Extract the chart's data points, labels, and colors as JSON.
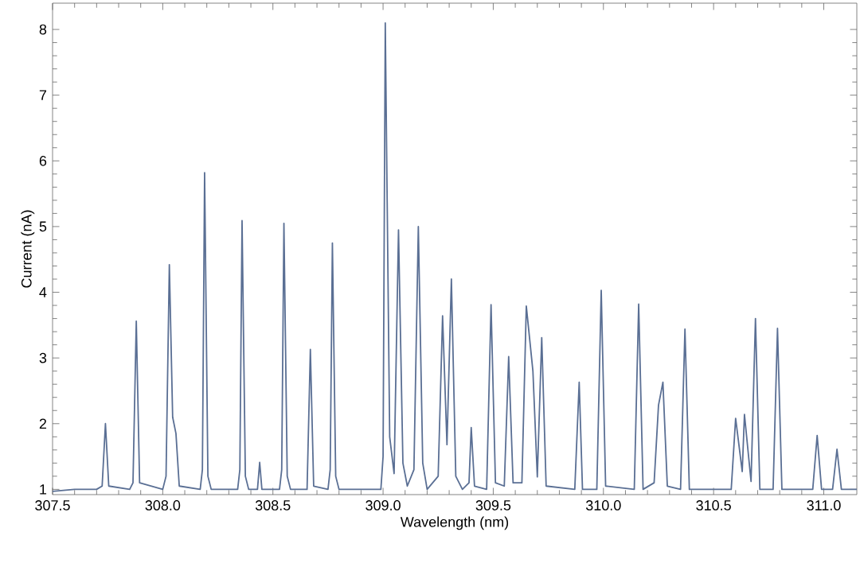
{
  "chart_data": {
    "type": "line",
    "xlabel": "Wavelength (nm)",
    "ylabel": "Current (nA)",
    "xlim": [
      307.5,
      311.15
    ],
    "ylim": [
      0.92,
      8.4
    ],
    "xticks": [
      {
        "value": 307.5,
        "label": "307.5"
      },
      {
        "value": 308.0,
        "label": "308.0"
      },
      {
        "value": 308.5,
        "label": "308.5"
      },
      {
        "value": 309.0,
        "label": "309.0"
      },
      {
        "value": 309.5,
        "label": "309.5"
      },
      {
        "value": 310.0,
        "label": "310.0"
      },
      {
        "value": 310.5,
        "label": "310.5"
      },
      {
        "value": 311.0,
        "label": "311.0"
      }
    ],
    "yticks": [
      1,
      2,
      3,
      4,
      5,
      6,
      7,
      8
    ],
    "grid": false,
    "marker": "none",
    "line_style": "solid",
    "x": [
      307.5,
      307.6,
      307.7,
      307.725,
      307.74,
      307.755,
      307.85,
      307.865,
      307.88,
      307.895,
      308.0,
      308.015,
      308.03,
      308.045,
      308.06,
      308.075,
      308.17,
      308.18,
      308.19,
      308.205,
      308.22,
      308.34,
      308.35,
      308.36,
      308.375,
      308.39,
      308.43,
      308.44,
      308.45,
      308.53,
      308.54,
      308.55,
      308.565,
      308.58,
      308.655,
      308.67,
      308.685,
      308.75,
      308.76,
      308.77,
      308.785,
      308.8,
      308.99,
      309.0,
      309.01,
      309.03,
      309.05,
      309.07,
      309.09,
      309.11,
      309.14,
      309.16,
      309.18,
      309.2,
      309.25,
      309.27,
      309.29,
      309.31,
      309.33,
      309.36,
      309.39,
      309.4,
      309.415,
      309.47,
      309.49,
      309.51,
      309.55,
      309.57,
      309.59,
      309.63,
      309.65,
      309.68,
      309.7,
      309.72,
      309.74,
      309.87,
      309.89,
      309.905,
      309.97,
      309.99,
      310.01,
      310.14,
      310.16,
      310.18,
      310.23,
      310.25,
      310.27,
      310.29,
      310.35,
      310.37,
      310.39,
      310.58,
      310.6,
      310.63,
      310.64,
      310.67,
      310.69,
      310.71,
      310.77,
      310.79,
      310.81,
      310.95,
      310.97,
      310.99,
      311.04,
      311.06,
      311.08,
      311.15
    ],
    "series": [
      {
        "color": "#5a6f94",
        "values": [
          0.97,
          1.0,
          1.0,
          1.05,
          2.0,
          1.05,
          1.0,
          1.1,
          3.56,
          1.1,
          1.0,
          1.2,
          4.42,
          2.1,
          1.85,
          1.05,
          1.0,
          1.3,
          5.82,
          1.2,
          1.0,
          1.0,
          1.3,
          5.09,
          1.2,
          1.0,
          1.0,
          1.41,
          1.0,
          1.0,
          1.3,
          5.05,
          1.2,
          1.0,
          1.0,
          3.13,
          1.05,
          1.0,
          1.3,
          4.75,
          1.2,
          1.0,
          1.0,
          1.5,
          8.1,
          1.8,
          1.24,
          4.95,
          1.4,
          1.05,
          1.3,
          5.0,
          1.4,
          1.0,
          1.2,
          3.64,
          1.68,
          4.2,
          1.2,
          1.0,
          1.1,
          1.94,
          1.05,
          1.0,
          3.81,
          1.1,
          1.05,
          3.02,
          1.1,
          1.1,
          3.79,
          2.8,
          1.19,
          3.31,
          1.05,
          1.0,
          2.63,
          1.0,
          1.0,
          4.03,
          1.05,
          1.0,
          3.82,
          1.0,
          1.1,
          2.28,
          2.63,
          1.05,
          1.0,
          3.44,
          1.0,
          1.0,
          2.08,
          1.27,
          2.14,
          1.12,
          3.6,
          1.0,
          1.0,
          3.45,
          1.0,
          1.0,
          1.82,
          1.0,
          1.0,
          1.61,
          1.0,
          1.0
        ]
      }
    ]
  }
}
